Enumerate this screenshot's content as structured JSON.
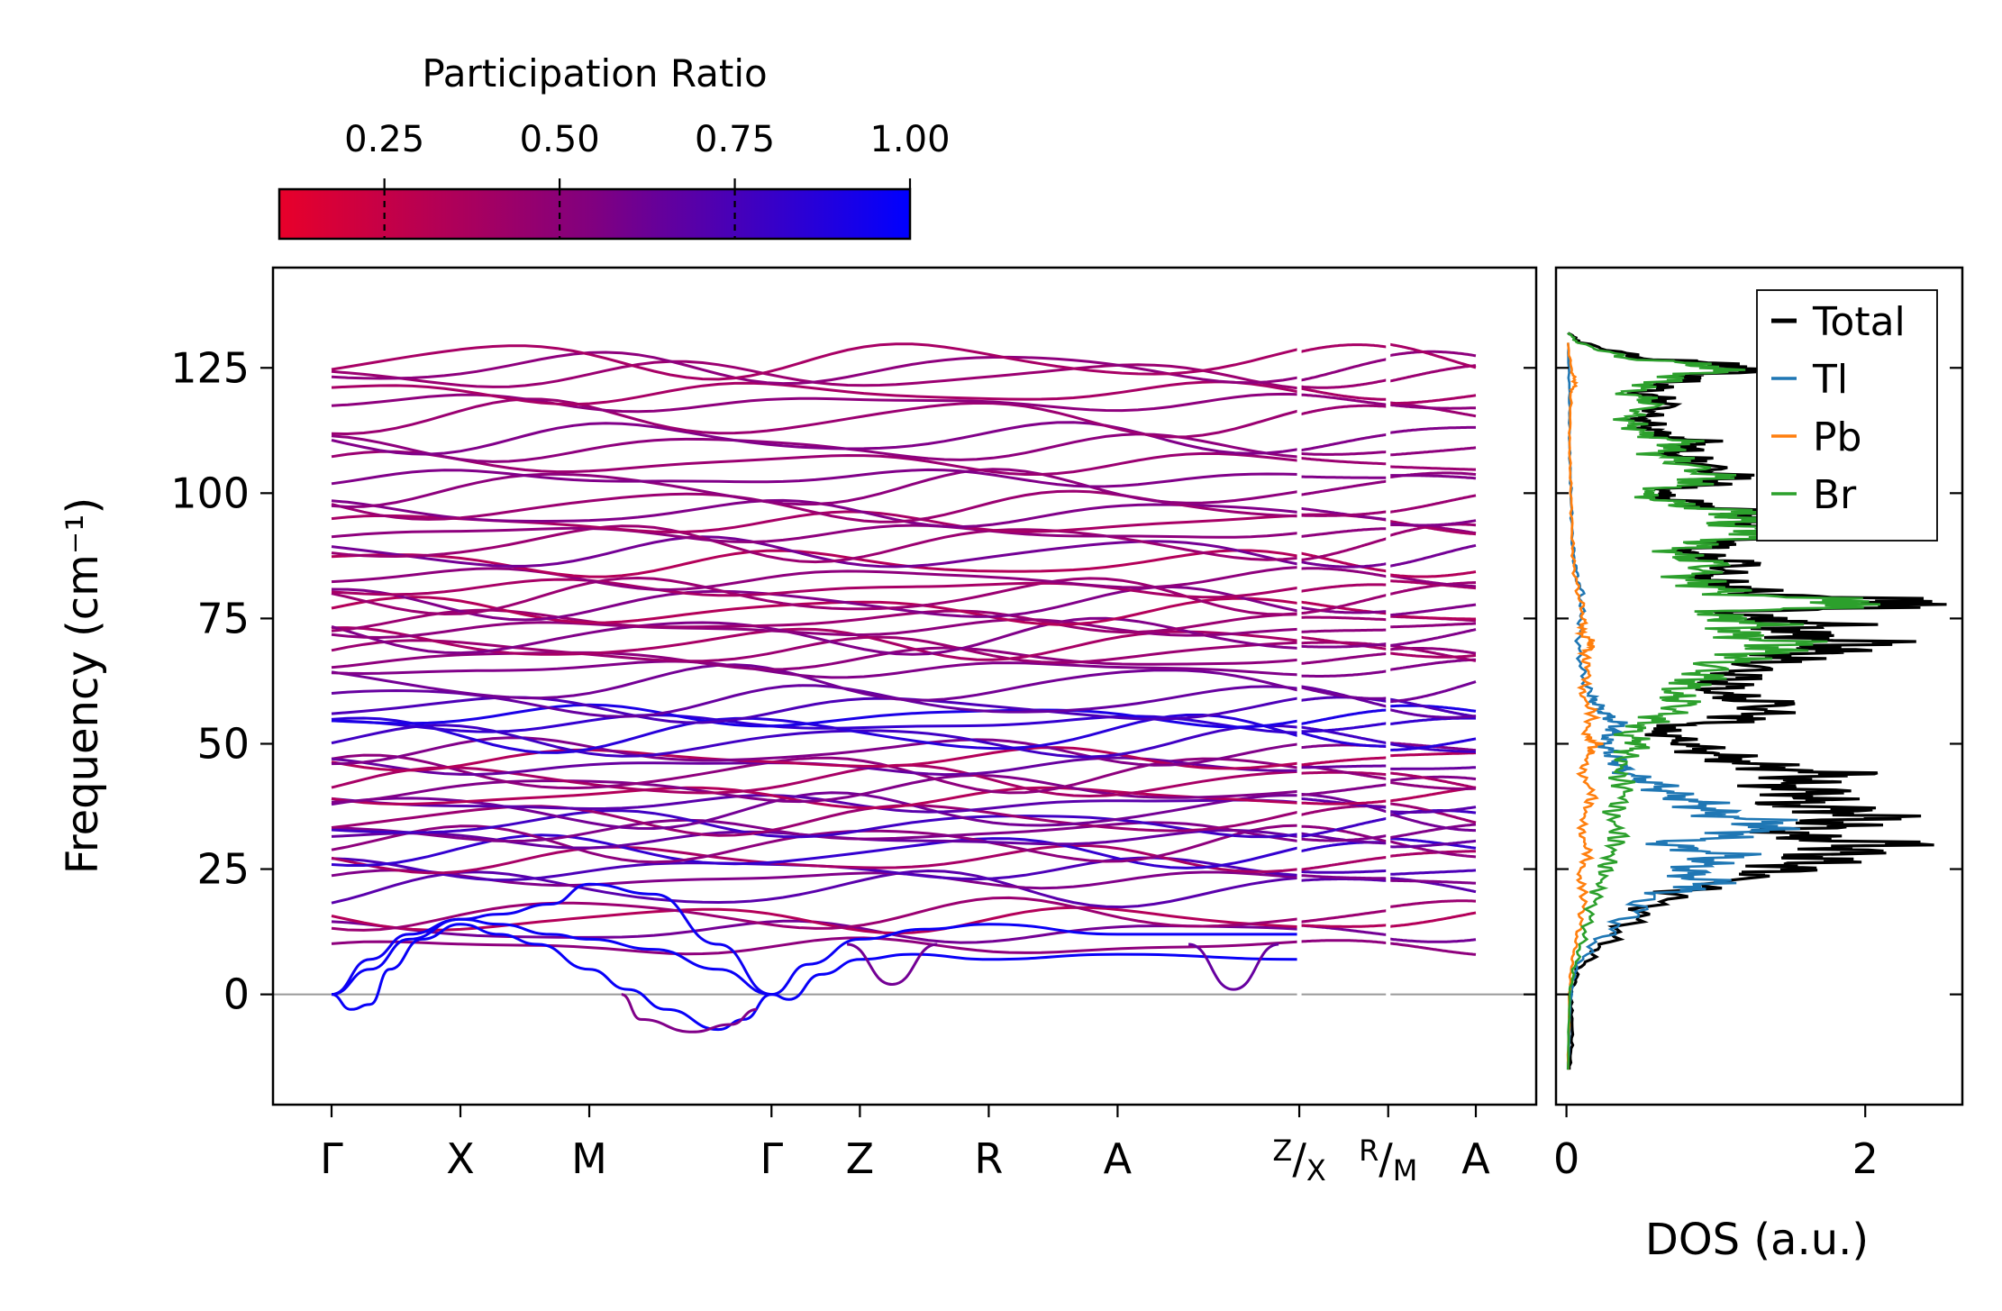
{
  "chart_data": [
    {
      "type": "line",
      "subtype": "phonon-band-structure",
      "ylabel": "Frequency (cm⁻¹)",
      "ylim": [
        -22,
        145
      ],
      "yticks": [
        0,
        25,
        50,
        75,
        100,
        125
      ],
      "zero_line": true,
      "kpath": [
        {
          "label": "Γ",
          "x": 0.0
        },
        {
          "label": "X",
          "x": 1.0
        },
        {
          "label": "M",
          "x": 2.0
        },
        {
          "label": "Γ",
          "x": 3.414
        },
        {
          "label": "Z",
          "x": 4.1
        },
        {
          "label": "R",
          "x": 5.1
        },
        {
          "label": "A",
          "x": 6.1
        },
        {
          "label": "Z|X",
          "x": 7.51
        },
        {
          "label": "R|M",
          "x": 8.2
        },
        {
          "label": "A",
          "x": 8.88
        }
      ],
      "tick_labels": [
        "Γ",
        "X",
        "M",
        "Γ",
        "Z",
        "R",
        "A",
        "Z",
        "/X",
        "R",
        "/M",
        "A"
      ],
      "segment_breaks": [
        7.51,
        8.2
      ],
      "colorbar": {
        "title": "Participation Ratio",
        "range": [
          0.1,
          1.0
        ],
        "ticks": [
          "0.25",
          "0.50",
          "0.75",
          "1.00"
        ],
        "tick_values": [
          0.25,
          0.5,
          0.75,
          1.0
        ],
        "color_low": "#e8002a",
        "color_high": "#0000ff"
      },
      "acoustic_branches": [
        {
          "name": "acoustic-1",
          "pr": 0.97,
          "points": [
            [
              0,
              0
            ],
            [
              0.15,
              -3
            ],
            [
              0.3,
              -2
            ],
            [
              0.45,
              5
            ],
            [
              0.7,
              11
            ],
            [
              1.0,
              14
            ],
            [
              1.3,
              12
            ],
            [
              1.6,
              10
            ],
            [
              2.0,
              5
            ],
            [
              2.3,
              1
            ],
            [
              2.6,
              -3
            ],
            [
              3.0,
              -7
            ],
            [
              3.2,
              -5
            ],
            [
              3.414,
              0
            ]
          ]
        },
        {
          "name": "acoustic-2",
          "pr": 0.96,
          "points": [
            [
              0,
              0
            ],
            [
              0.3,
              5
            ],
            [
              0.6,
              11
            ],
            [
              1.0,
              15
            ],
            [
              1.3,
              14
            ],
            [
              1.7,
              12
            ],
            [
              2.0,
              11
            ],
            [
              2.5,
              9
            ],
            [
              3.0,
              5
            ],
            [
              3.414,
              0
            ]
          ]
        },
        {
          "name": "acoustic-3",
          "pr": 0.95,
          "points": [
            [
              0,
              0
            ],
            [
              0.3,
              7
            ],
            [
              0.6,
              12
            ],
            [
              1.0,
              15
            ],
            [
              1.3,
              16
            ],
            [
              1.7,
              18
            ],
            [
              2.0,
              22
            ],
            [
              2.5,
              20
            ],
            [
              3.0,
              10
            ],
            [
              3.414,
              0
            ]
          ]
        },
        {
          "name": "acoustic-gz-1",
          "pr": 0.97,
          "points": [
            [
              3.414,
              0
            ],
            [
              3.55,
              -1
            ],
            [
              3.8,
              4
            ],
            [
              4.1,
              7
            ],
            [
              4.5,
              8
            ],
            [
              5.1,
              7
            ],
            [
              6.1,
              8
            ],
            [
              7.51,
              7
            ]
          ]
        },
        {
          "name": "acoustic-gz-2",
          "pr": 0.96,
          "points": [
            [
              3.414,
              0
            ],
            [
              3.7,
              6
            ],
            [
              4.1,
              11
            ],
            [
              4.6,
              13
            ],
            [
              5.1,
              14
            ],
            [
              6.1,
              12
            ],
            [
              7.51,
              12
            ]
          ]
        },
        {
          "name": "soft-mode",
          "pr": 0.5,
          "points": [
            [
              2.25,
              0
            ],
            [
              2.4,
              -5
            ],
            [
              2.8,
              -7.5
            ],
            [
              3.1,
              -6
            ],
            [
              3.3,
              -3
            ]
          ]
        }
      ],
      "dips": [
        {
          "name": "dip-z",
          "pr": 0.55,
          "center": 4.35,
          "depth": 2
        },
        {
          "name": "dip-a",
          "pr": 0.6,
          "center": 7.0,
          "depth": 1
        }
      ],
      "optical_band_frequencies": [
        9.5,
        12.5,
        15,
        16,
        21,
        23,
        25,
        27,
        28.5,
        30,
        31,
        32.5,
        34,
        35,
        36.5,
        38,
        39.5,
        41,
        42.5,
        44,
        45.5,
        47,
        48.5,
        50.5,
        52,
        54,
        55.5,
        57,
        58.5,
        62,
        65,
        67,
        68.5,
        70,
        71.5,
        73,
        74.5,
        76.5,
        78,
        79.5,
        81,
        83,
        86,
        88,
        90,
        92,
        94,
        96,
        97.5,
        101,
        103,
        106,
        109,
        111,
        115,
        118,
        120,
        123.5,
        125,
        126.5
      ],
      "optical_band_pr": [
        0.45,
        0.55,
        0.3,
        0.4,
        0.65,
        0.5,
        0.7,
        0.35,
        0.8,
        0.45,
        0.6,
        0.5,
        0.75,
        0.4,
        0.55,
        0.65,
        0.3,
        0.5,
        0.35,
        0.45,
        0.6,
        0.3,
        0.5,
        0.75,
        0.85,
        0.8,
        0.9,
        0.7,
        0.6,
        0.55,
        0.5,
        0.45,
        0.4,
        0.35,
        0.5,
        0.45,
        0.4,
        0.3,
        0.5,
        0.4,
        0.35,
        0.45,
        0.3,
        0.55,
        0.4,
        0.45,
        0.35,
        0.5,
        0.4,
        0.45,
        0.5,
        0.4,
        0.45,
        0.5,
        0.4,
        0.45,
        0.35,
        0.4,
        0.45,
        0.35
      ]
    },
    {
      "type": "line",
      "subtype": "density-of-states",
      "xlabel": "DOS (a.u.)",
      "xlim": [
        -0.07,
        2.65
      ],
      "xticks": [
        0,
        2
      ],
      "ylim": [
        -22,
        145
      ],
      "legend_position": "top-right",
      "series": [
        {
          "name": "Total",
          "color": "#000000",
          "points": [
            [
              -15,
              0.02
            ],
            [
              -8,
              0.04
            ],
            [
              0,
              0.03
            ],
            [
              5,
              0.08
            ],
            [
              10,
              0.25
            ],
            [
              15,
              0.45
            ],
            [
              20,
              0.7
            ],
            [
              24,
              1.3
            ],
            [
              26,
              1.6
            ],
            [
              28,
              1.75
            ],
            [
              30,
              2.15
            ],
            [
              32,
              1.4
            ],
            [
              34,
              1.8
            ],
            [
              36,
              2.05
            ],
            [
              38,
              1.5
            ],
            [
              40,
              1.7
            ],
            [
              42,
              1.4
            ],
            [
              44,
              1.8
            ],
            [
              46,
              1.2
            ],
            [
              48,
              1.0
            ],
            [
              50,
              0.8
            ],
            [
              53,
              0.6
            ],
            [
              55,
              1.2
            ],
            [
              58,
              1.4
            ],
            [
              60,
              1.0
            ],
            [
              63,
              1.1
            ],
            [
              66,
              1.3
            ],
            [
              68,
              1.6
            ],
            [
              70,
              2.0
            ],
            [
              72,
              1.5
            ],
            [
              74,
              1.7
            ],
            [
              76,
              1.0
            ],
            [
              78,
              2.55
            ],
            [
              80,
              1.3
            ],
            [
              83,
              0.9
            ],
            [
              86,
              1.2
            ],
            [
              88,
              0.8
            ],
            [
              90,
              1.0
            ],
            [
              92,
              1.6
            ],
            [
              94,
              1.2
            ],
            [
              96,
              1.3
            ],
            [
              98,
              0.8
            ],
            [
              100,
              0.6
            ],
            [
              103,
              1.1
            ],
            [
              106,
              0.9
            ],
            [
              108,
              0.7
            ],
            [
              110,
              0.9
            ],
            [
              112,
              0.6
            ],
            [
              115,
              0.5
            ],
            [
              118,
              0.7
            ],
            [
              120,
              0.5
            ],
            [
              123,
              0.8
            ],
            [
              125,
              1.3
            ],
            [
              127,
              0.5
            ],
            [
              130,
              0.1
            ],
            [
              132,
              0.01
            ]
          ]
        },
        {
          "name": "Tl",
          "color": "#1f77b4",
          "points": [
            [
              -15,
              0.01
            ],
            [
              0,
              0.03
            ],
            [
              5,
              0.06
            ],
            [
              10,
              0.18
            ],
            [
              15,
              0.4
            ],
            [
              20,
              0.6
            ],
            [
              22,
              1.0
            ],
            [
              24,
              0.8
            ],
            [
              26,
              0.9
            ],
            [
              28,
              1.1
            ],
            [
              30,
              0.6
            ],
            [
              32,
              1.2
            ],
            [
              34,
              1.4
            ],
            [
              36,
              1.0
            ],
            [
              38,
              0.9
            ],
            [
              40,
              0.7
            ],
            [
              42,
              0.6
            ],
            [
              44,
              0.4
            ],
            [
              46,
              0.35
            ],
            [
              48,
              0.3
            ],
            [
              50,
              0.25
            ],
            [
              52,
              0.3
            ],
            [
              54,
              0.35
            ],
            [
              56,
              0.25
            ],
            [
              58,
              0.2
            ],
            [
              60,
              0.15
            ],
            [
              65,
              0.1
            ],
            [
              70,
              0.08
            ],
            [
              75,
              0.1
            ],
            [
              80,
              0.1
            ],
            [
              85,
              0.06
            ],
            [
              90,
              0.04
            ],
            [
              100,
              0.03
            ],
            [
              110,
              0.02
            ],
            [
              120,
              0.02
            ],
            [
              130,
              0.01
            ]
          ]
        },
        {
          "name": "Pb",
          "color": "#ff7f0e",
          "points": [
            [
              -15,
              0.01
            ],
            [
              0,
              0.02
            ],
            [
              5,
              0.03
            ],
            [
              10,
              0.06
            ],
            [
              15,
              0.1
            ],
            [
              20,
              0.12
            ],
            [
              24,
              0.08
            ],
            [
              28,
              0.15
            ],
            [
              32,
              0.1
            ],
            [
              36,
              0.12
            ],
            [
              40,
              0.18
            ],
            [
              44,
              0.1
            ],
            [
              48,
              0.15
            ],
            [
              50,
              0.2
            ],
            [
              52,
              0.12
            ],
            [
              56,
              0.18
            ],
            [
              60,
              0.1
            ],
            [
              64,
              0.15
            ],
            [
              68,
              0.12
            ],
            [
              70,
              0.18
            ],
            [
              72,
              0.1
            ],
            [
              75,
              0.12
            ],
            [
              80,
              0.08
            ],
            [
              85,
              0.05
            ],
            [
              90,
              0.04
            ],
            [
              100,
              0.03
            ],
            [
              110,
              0.02
            ],
            [
              120,
              0.03
            ],
            [
              122,
              0.06
            ],
            [
              125,
              0.03
            ],
            [
              130,
              0.01
            ]
          ]
        },
        {
          "name": "Br",
          "color": "#2ca02c",
          "points": [
            [
              -15,
              0.01
            ],
            [
              0,
              0.02
            ],
            [
              5,
              0.05
            ],
            [
              10,
              0.1
            ],
            [
              15,
              0.15
            ],
            [
              20,
              0.2
            ],
            [
              24,
              0.25
            ],
            [
              28,
              0.3
            ],
            [
              32,
              0.35
            ],
            [
              36,
              0.3
            ],
            [
              40,
              0.4
            ],
            [
              44,
              0.35
            ],
            [
              48,
              0.4
            ],
            [
              50,
              0.5
            ],
            [
              52,
              0.4
            ],
            [
              55,
              0.6
            ],
            [
              58,
              0.8
            ],
            [
              60,
              0.7
            ],
            [
              63,
              0.9
            ],
            [
              66,
              1.0
            ],
            [
              68,
              1.3
            ],
            [
              70,
              1.5
            ],
            [
              72,
              1.1
            ],
            [
              74,
              1.3
            ],
            [
              76,
              0.9
            ],
            [
              78,
              2.1
            ],
            [
              80,
              1.1
            ],
            [
              83,
              0.8
            ],
            [
              86,
              1.0
            ],
            [
              88,
              0.7
            ],
            [
              90,
              0.9
            ],
            [
              92,
              1.4
            ],
            [
              94,
              1.1
            ],
            [
              96,
              1.2
            ],
            [
              98,
              0.7
            ],
            [
              100,
              0.5
            ],
            [
              103,
              1.0
            ],
            [
              106,
              0.8
            ],
            [
              108,
              0.6
            ],
            [
              110,
              0.8
            ],
            [
              112,
              0.5
            ],
            [
              115,
              0.4
            ],
            [
              118,
              0.6
            ],
            [
              120,
              0.4
            ],
            [
              123,
              0.7
            ],
            [
              125,
              1.1
            ],
            [
              127,
              0.4
            ],
            [
              130,
              0.08
            ],
            [
              132,
              0.01
            ]
          ]
        }
      ]
    }
  ]
}
